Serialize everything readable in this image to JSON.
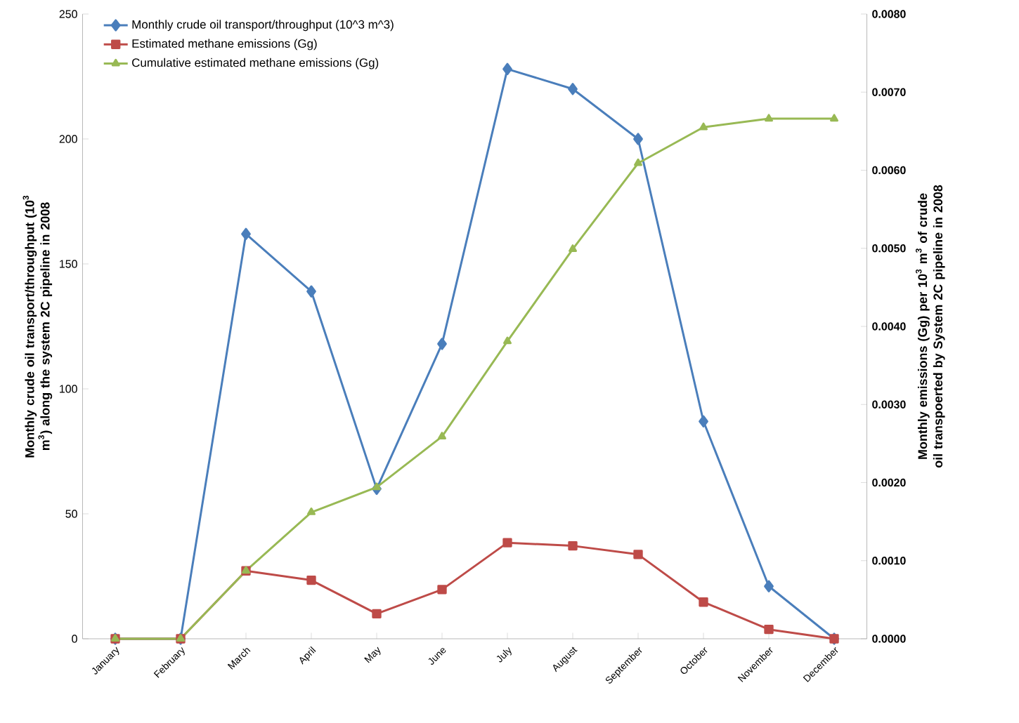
{
  "chart_data": {
    "type": "line",
    "categories": [
      "January",
      "February",
      "March",
      "April",
      "May",
      "June",
      "July",
      "August",
      "September",
      "October",
      "November",
      "December"
    ],
    "ylabel": "Monthly crude oil transport/throughput  (10$^{3}$ m$^{3}$) along the system 2C pipeline in 2008",
    "y2label": "Monthly emissions (Gg) per 10$^{3}$ m$^{3}$  of crude oil transpoerted by System 2C pipeline in 2008",
    "ylim": [
      0,
      250
    ],
    "yticks": [
      0,
      50,
      100,
      150,
      200,
      250
    ],
    "y2lim": [
      0,
      0.008
    ],
    "y2ticks": [
      {
        "value": 0,
        "label": "0.0000"
      },
      {
        "value": 0.001,
        "label": "0.0010"
      },
      {
        "value": 0.002,
        "label": "0.0020"
      },
      {
        "value": 0.003,
        "label": "0.0030"
      },
      {
        "value": 0.004,
        "label": "0.0040"
      },
      {
        "value": 0.005,
        "label": "0.0050"
      },
      {
        "value": 0.006,
        "label": "0.0060"
      },
      {
        "value": 0.007,
        "label": "0.0070"
      },
      {
        "value": 0.008,
        "label": "0.0080"
      }
    ],
    "legend": "top left",
    "grid": false,
    "series": [
      {
        "name": "Monthly crude oil transport/throughput (10^3 m^3)",
        "color": "#4a7ebb",
        "marker": "diamond",
        "values": [
          0,
          0,
          162,
          139,
          60,
          118,
          228,
          220,
          200,
          87,
          21,
          0
        ]
      },
      {
        "name": "Estimated methane emissions (Gg)",
        "color": "#be4b48",
        "marker": "square",
        "axis": "y2",
        "values": [
          0,
          0,
          0.00087,
          0.00075,
          0.00032,
          0.00063,
          0.00123,
          0.00119,
          0.00108,
          0.00047,
          0.00012,
          0
        ]
      },
      {
        "name": "Cumulative estimated methane emissions (Gg)",
        "color": "#98b954",
        "marker": "triangle",
        "axis": "y2",
        "values": [
          0,
          0,
          0.00087,
          0.00162,
          0.00194,
          0.00259,
          0.00381,
          0.00499,
          0.00609,
          0.00655,
          0.00666,
          0.00666
        ]
      }
    ]
  }
}
